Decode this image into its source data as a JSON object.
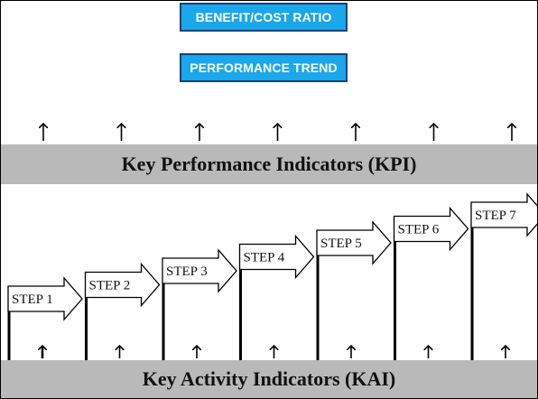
{
  "top_boxes": {
    "benefit_cost": "BENEFIT/COST RATIO",
    "performance_trend": "PERFORMANCE TREND"
  },
  "kpi_label": "Key Performance Indicators (KPI)",
  "kai_label": "Key Activity Indicators (KAI)",
  "steps": [
    "STEP 1",
    "STEP 2",
    "STEP 3",
    "STEP 4",
    "STEP 5",
    "STEP 6",
    "STEP 7"
  ],
  "colors": {
    "box_fill": "#1aa7ec",
    "box_border": "#1f3f6e",
    "band": "#b9b9b9"
  }
}
